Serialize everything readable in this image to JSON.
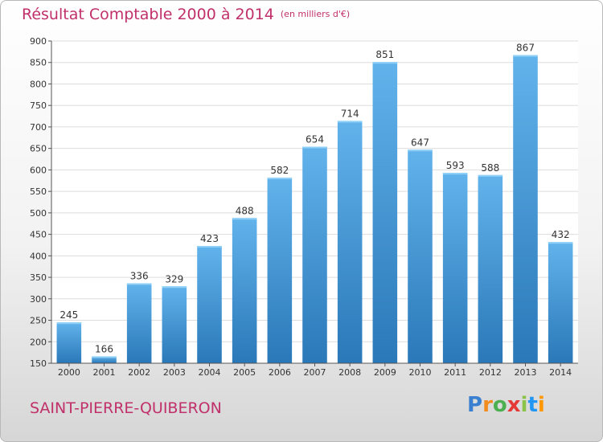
{
  "title": "Résultat Comptable 2000 à 2014",
  "subtitle": "(en milliers d'€)",
  "city": "SAINT-PIERRE-QUIBERON",
  "logo": {
    "letters": [
      "P",
      "r",
      "o",
      "x",
      "i",
      "t",
      "i"
    ],
    "colors": [
      "#3a7fd0",
      "#f28c1e",
      "#4caf50",
      "#e53935",
      "#8bc34a",
      "#2196f3",
      "#ff9800"
    ]
  },
  "colors": {
    "title": "#c0306a",
    "bar_top": "#62b3ec",
    "bar_bottom": "#2a78b8",
    "grid": "#dddddd"
  },
  "chart_data": {
    "type": "bar",
    "categories": [
      "2000",
      "2001",
      "2002",
      "2003",
      "2004",
      "2005",
      "2006",
      "2007",
      "2008",
      "2009",
      "2010",
      "2011",
      "2012",
      "2013",
      "2014"
    ],
    "values": [
      245,
      166,
      336,
      329,
      423,
      488,
      582,
      654,
      714,
      851,
      647,
      593,
      588,
      867,
      432
    ],
    "data_labels": [
      "245",
      "166",
      "336",
      "329",
      "423",
      "488",
      "582",
      "654",
      "714",
      "851",
      "647",
      "593",
      "588",
      "867",
      "432"
    ],
    "yticks": [
      "150",
      "200",
      "250",
      "300",
      "350",
      "400",
      "450",
      "500",
      "550",
      "600",
      "650",
      "700",
      "750",
      "800",
      "850",
      "900"
    ],
    "ylim": [
      150,
      900
    ],
    "grid": true,
    "legend": "none"
  }
}
